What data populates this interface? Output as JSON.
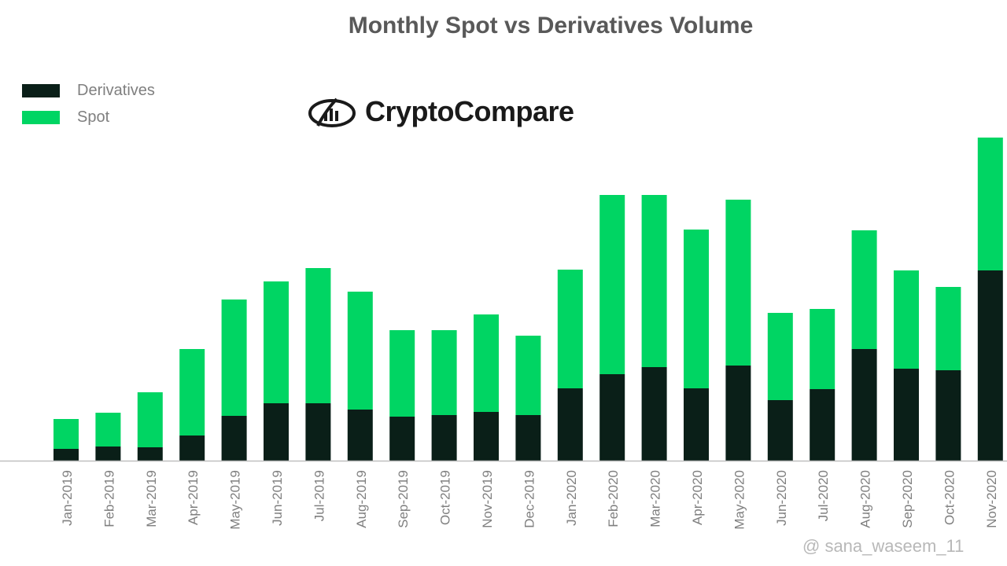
{
  "chart_data": {
    "type": "bar",
    "stacked": true,
    "title": "Monthly Spot vs Derivatives Volume",
    "categories": [
      "Jan-2019",
      "Feb-2019",
      "Mar-2019",
      "Apr-2019",
      "May-2019",
      "Jun-2019",
      "Jul-2019",
      "Aug-2019",
      "Sep-2019",
      "Oct-2019",
      "Nov-2019",
      "Dec-2019",
      "Jan-2020",
      "Feb-2020",
      "Mar-2020",
      "Apr-2020",
      "May-2020",
      "Jun-2020",
      "Jul-2020",
      "Aug-2020",
      "Sep-2020",
      "Oct-2020",
      "Nov-2020"
    ],
    "series": [
      {
        "name": "Derivatives",
        "color": "#0a1f18",
        "values": [
          15,
          18,
          17,
          32,
          57,
          73,
          73,
          65,
          56,
          58,
          62,
          58,
          92,
          110,
          119,
          92,
          121,
          77,
          91,
          142,
          117,
          115,
          242
        ]
      },
      {
        "name": "Spot",
        "color": "#00d563",
        "values": [
          38,
          43,
          70,
          110,
          148,
          155,
          172,
          150,
          110,
          108,
          124,
          101,
          151,
          228,
          219,
          202,
          211,
          111,
          102,
          151,
          125,
          106,
          169
        ]
      }
    ],
    "ylim": [
      0,
      420
    ],
    "grid": false,
    "legend_position": "top-left"
  },
  "logo": {
    "text": "CryptoCompare",
    "icon": "crypto-compare-logo-icon"
  },
  "watermark": "@ sana_waseem_11"
}
